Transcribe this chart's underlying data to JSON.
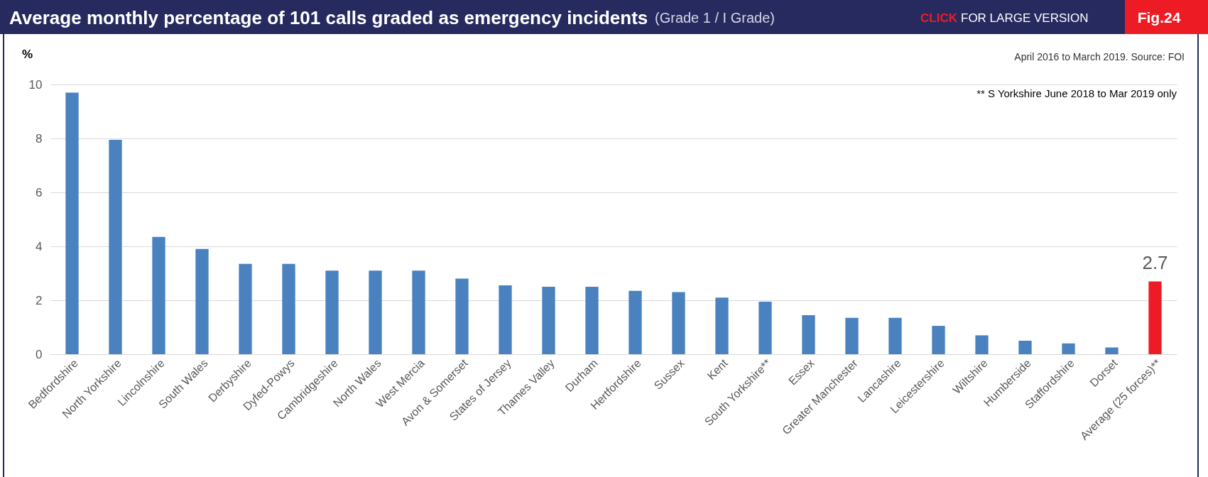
{
  "chart_data": {
    "type": "bar",
    "title": "Average monthly percentage of 101 calls graded as emergency incidents",
    "subtitle": "(Grade 1 / I Grade)",
    "ylabel": "%",
    "annotations": [
      "CLICK FOR LARGE VERSION",
      "Fig.24",
      "April 2016 to March 2019. Source: FOI",
      "** S Yorkshire June 2018 to Mar 2019 only"
    ],
    "categories": [
      "Bedfordshire",
      "North Yorkshire",
      "Lincolnshire",
      "South Wales",
      "Derbyshire",
      "Dyfed-Powys",
      "Cambridgeshire",
      "North Wales",
      "West Mercia",
      "Avon & Somerset",
      "States of Jersey",
      "Thames Valley",
      "Durham",
      "Hertfordshire",
      "Sussex",
      "Kent",
      "South Yorkshire**",
      "Essex",
      "Greater Manchester",
      "Lancashire",
      "Leicestershire",
      "Wiltshire",
      "Humberside",
      "Staffordshire",
      "Dorset",
      "Average (25 forces)**"
    ],
    "values": [
      9.7,
      7.95,
      4.35,
      3.9,
      3.35,
      3.35,
      3.1,
      3.1,
      3.1,
      2.8,
      2.55,
      2.5,
      2.5,
      2.35,
      2.3,
      2.1,
      1.95,
      1.45,
      1.35,
      1.35,
      1.05,
      0.7,
      0.5,
      0.4,
      0.25,
      2.7
    ],
    "colors": [
      "#4a81bf",
      "#4a81bf",
      "#4a81bf",
      "#4a81bf",
      "#4a81bf",
      "#4a81bf",
      "#4a81bf",
      "#4a81bf",
      "#4a81bf",
      "#4a81bf",
      "#4a81bf",
      "#4a81bf",
      "#4a81bf",
      "#4a81bf",
      "#4a81bf",
      "#4a81bf",
      "#4a81bf",
      "#4a81bf",
      "#4a81bf",
      "#4a81bf",
      "#4a81bf",
      "#4a81bf",
      "#4a81bf",
      "#4a81bf",
      "#4a81bf",
      "#ed1c24"
    ],
    "value_labels": [
      null,
      null,
      null,
      null,
      null,
      null,
      null,
      null,
      null,
      null,
      null,
      null,
      null,
      null,
      null,
      null,
      null,
      null,
      null,
      null,
      null,
      null,
      null,
      null,
      null,
      "2.7"
    ],
    "ylim": [
      0,
      10
    ],
    "yticks": [
      0,
      2,
      4,
      6,
      8,
      10
    ],
    "grid": "y"
  }
}
